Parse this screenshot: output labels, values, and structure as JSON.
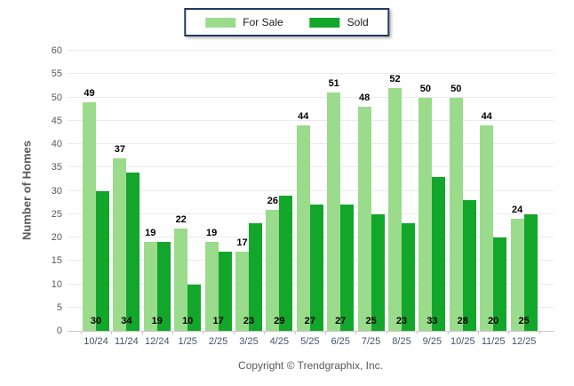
{
  "legend": {
    "items": [
      {
        "label": "For Sale",
        "color": "#9ADB8C"
      },
      {
        "label": "Sold",
        "color": "#12A62B"
      }
    ]
  },
  "footer": {
    "text": "Copyright © Trendgraphix, Inc."
  },
  "colors": {
    "for_sale": "#9ADB8C",
    "sold": "#12A62B",
    "gridline": "#EBEBEB",
    "axis_line": "#C9C9C9",
    "x_label": "#44546A",
    "y_label": "#595959",
    "value_label": "#000000",
    "legend_border": "#1F3864"
  },
  "chart_data": {
    "type": "bar",
    "title": "",
    "xlabel": "",
    "ylabel": "Number of Homes",
    "categories": [
      "10/24",
      "11/24",
      "12/24",
      "1/25",
      "2/25",
      "3/25",
      "4/25",
      "5/25",
      "6/25",
      "7/25",
      "8/25",
      "9/25",
      "10/25",
      "11/25",
      "12/25"
    ],
    "series": [
      {
        "name": "For Sale",
        "color": "#9ADB8C",
        "values": [
          49,
          37,
          19,
          22,
          19,
          17,
          26,
          44,
          51,
          48,
          52,
          50,
          50,
          44,
          24
        ],
        "label_position": "above-bar"
      },
      {
        "name": "Sold",
        "color": "#12A62B",
        "values": [
          30,
          34,
          19,
          10,
          17,
          23,
          29,
          27,
          27,
          25,
          23,
          33,
          28,
          20,
          25
        ],
        "label_position": "inside-bottom"
      }
    ],
    "ylim": [
      0,
      60
    ],
    "yticks": [
      0,
      5,
      10,
      15,
      20,
      25,
      30,
      35,
      40,
      45,
      50,
      55,
      60
    ],
    "grid": true,
    "legend_position": "top-center"
  }
}
